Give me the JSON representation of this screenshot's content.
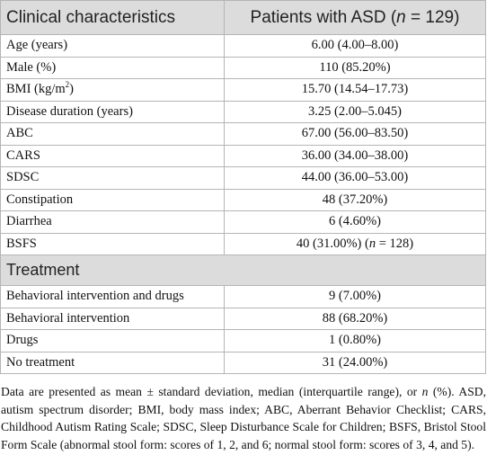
{
  "table": {
    "header": [
      "Clinical characteristics",
      [
        "Patients with ASD (",
        "n",
        " = 129)"
      ]
    ],
    "rows": [
      [
        "Age (years)",
        "6.00 (4.00–8.00)"
      ],
      [
        "Male (%)",
        "110 (85.20%)"
      ],
      [
        [
          "BMI (kg/m",
          "2",
          ")"
        ],
        "15.70 (14.54–17.73)"
      ],
      [
        "Disease duration (years)",
        "3.25 (2.00–5.045)"
      ],
      [
        "ABC",
        "67.00 (56.00–83.50)"
      ],
      [
        "CARS",
        "36.00 (34.00–38.00)"
      ],
      [
        "SDSC",
        "44.00 (36.00–53.00)"
      ],
      [
        "Constipation",
        "48 (37.20%)"
      ],
      [
        "Diarrhea",
        "6 (4.60%)"
      ],
      [
        "BSFS",
        [
          "40 (31.00%) (",
          "n",
          " = 128)"
        ]
      ]
    ],
    "section": "Treatment",
    "section_rows": [
      [
        "Behavioral intervention and drugs",
        "9 (7.00%)"
      ],
      [
        "Behavioral intervention",
        "88 (68.20%)"
      ],
      [
        "Drugs",
        "1 (0.80%)"
      ],
      [
        "No treatment",
        "31 (24.00%)"
      ]
    ]
  },
  "footnote": [
    "Data are presented as mean ± standard deviation, median (interquartile range), or ",
    "n",
    " (%). ASD, autism spectrum disorder; BMI, body mass index; ABC, Aberrant Behavior Checklist; CARS, Childhood Autism Rating Scale; SDSC, Sleep Disturbance Scale for Children; BSFS, Bristol Stool Form Scale (abnormal stool form: scores of 1, 2, and 6; normal stool form: scores of 3, 4, and 5)."
  ]
}
